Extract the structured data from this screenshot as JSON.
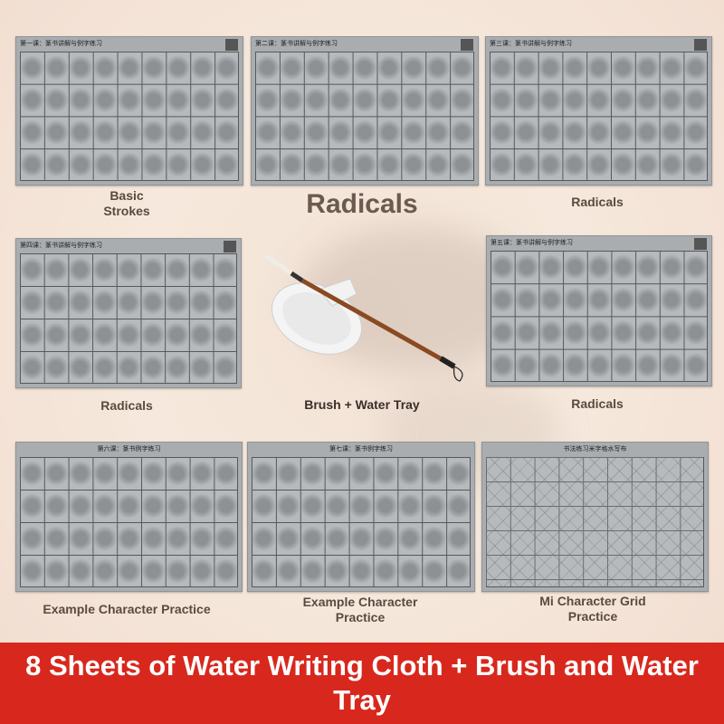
{
  "sheets": [
    {
      "header": "第一课：篆书讲解与例字练习",
      "label": "Basic\nStrokes"
    },
    {
      "header": "第二课：篆书讲解与例字练习",
      "label": "Radicals"
    },
    {
      "header": "第三课：篆书讲解与例字练习",
      "label": "Radicals"
    },
    {
      "header": "第四课：篆书讲解与例字练习",
      "label": "Radicals"
    },
    {
      "header": "第五课：篆书讲解与例字练习",
      "label": "Radicals"
    },
    {
      "header": "第六课：篆书例字练习",
      "label": "Example Character Practice"
    },
    {
      "header": "第七课：篆书例字练习",
      "label": "Example Character\nPractice"
    },
    {
      "header": "书法练习米字格水写布",
      "label": "Mi Character\nGrid Practice"
    }
  ],
  "labels": {
    "basic_strokes": "Basic Strokes",
    "radicals_big": "Radicals",
    "radicals_3": "Radicals",
    "radicals_4": "Radicals",
    "radicals_5": "Radicals",
    "brush_tray": "Brush + Water Tray",
    "example_6": "Example Character Practice",
    "example_7": "Example Character Practice",
    "mi_grid": "Mi Character Grid Practice"
  },
  "banner": {
    "text": "8 Sheets of Water Writing Cloth + Brush and Water Tray"
  },
  "colors": {
    "banner": "#d8281d",
    "label": "#5b4a40",
    "cloth": "#a9adb0"
  }
}
